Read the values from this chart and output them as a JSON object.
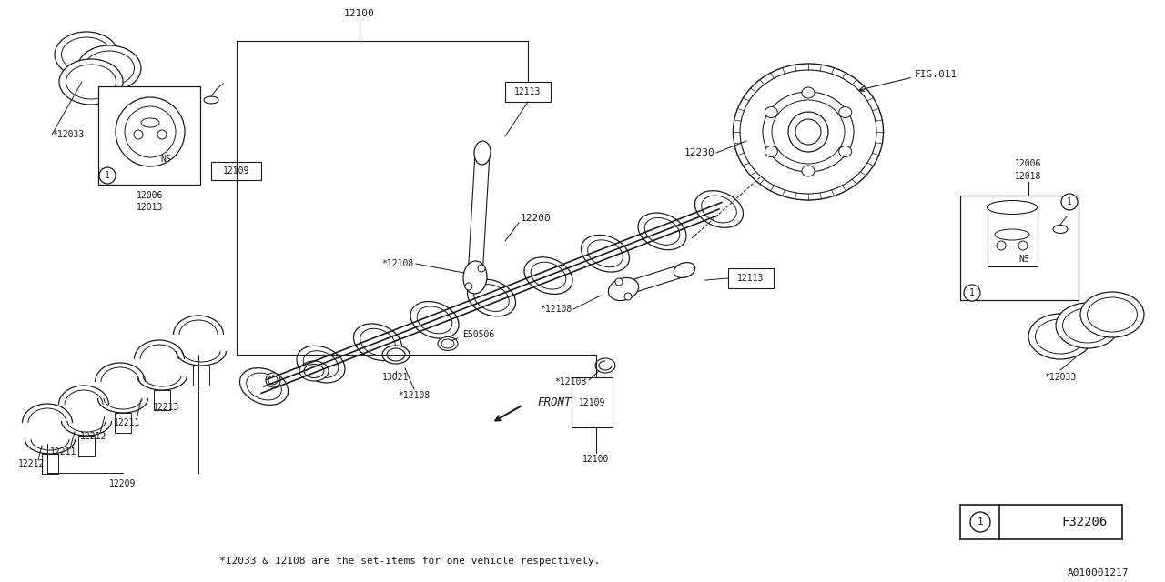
{
  "bg_color": "#ffffff",
  "line_color": "#1a1a1a",
  "footer_note": "*12033 & 12108 are the set-items for one vehicle respectively.",
  "ref_code": "A010001217",
  "legend_symbol": "F32206"
}
